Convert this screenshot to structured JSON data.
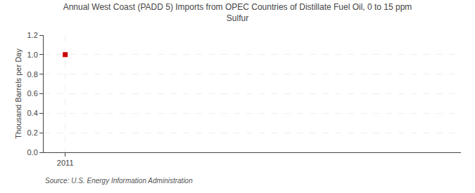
{
  "chart_data": {
    "type": "scatter",
    "title": "Annual West Coast (PADD 5) Imports from OPEC Countries of Distillate Fuel Oil, 0 to 15 ppm\nSulfur",
    "ylabel": "Thousand Barrels per Day",
    "x": [
      2011
    ],
    "values": [
      1.0
    ],
    "color": "#cc0000",
    "marker": "square",
    "xlim": [
      2010.4,
      2022
    ],
    "xticks": [
      2011
    ],
    "ylim": [
      0.0,
      1.2
    ],
    "yticks": [
      {
        "value": 0,
        "label": "0.0"
      },
      0.2,
      0.4,
      0.6,
      0.8,
      {
        "value": 1,
        "label": "1.0"
      },
      1.2
    ],
    "grid": true,
    "annotations": [
      "Source: U.S. Energy Information Administration"
    ]
  }
}
